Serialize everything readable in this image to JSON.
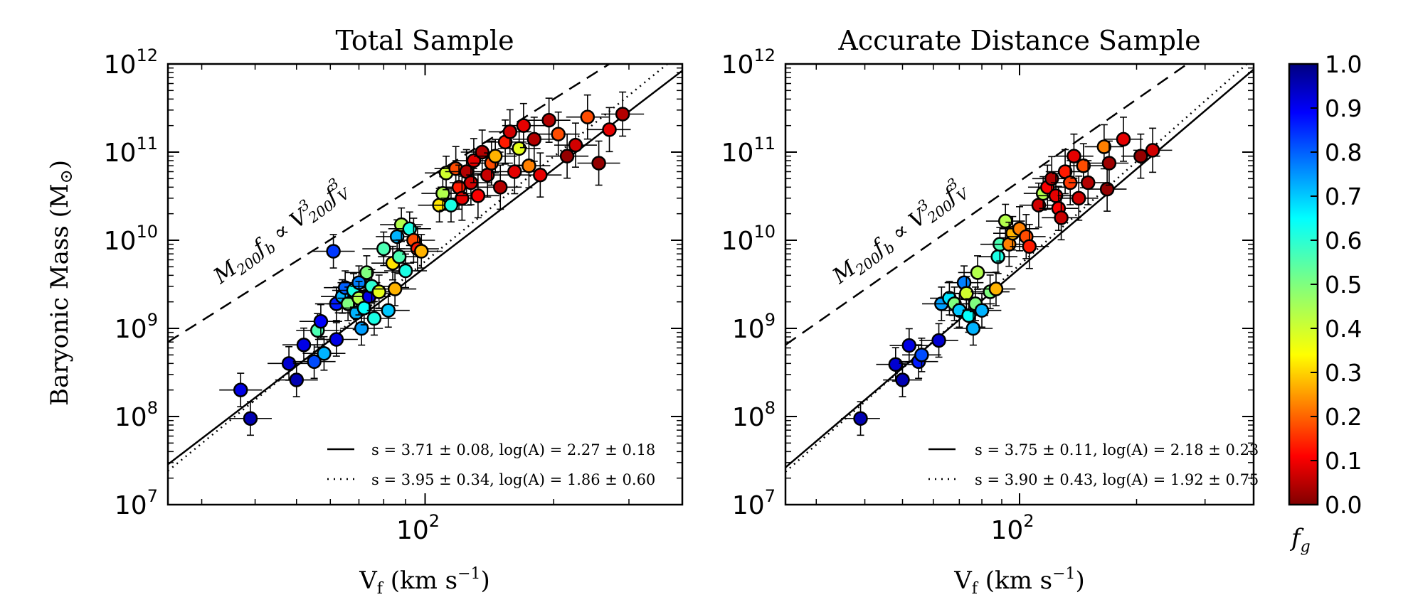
{
  "chart_data": [
    {
      "type": "scatter",
      "title": "Total Sample",
      "xlabel": "V_f (km s^-1)",
      "ylabel": "Baryonic Mass (M_sun)",
      "xscale": "log",
      "yscale": "log",
      "xlim": [
        25,
        400
      ],
      "ylim": [
        10000000,
        1000000000000
      ],
      "x_tick_labels": [
        "10^2"
      ],
      "y_tick_labels": [
        "10^7",
        "10^8",
        "10^9",
        "10^10",
        "10^11",
        "10^12"
      ],
      "annotation": "M200 fb ∝ V200^3 fV^3",
      "legend": [
        {
          "style": "solid",
          "label": "s = 3.71 ± 0.08, log(A) = 2.27 ± 0.18"
        },
        {
          "style": "dotted",
          "label": "s = 3.95 ± 0.34, log(A) = 1.86 ± 0.60"
        }
      ],
      "fits": [
        {
          "style": "solid",
          "s": 3.71,
          "logA": 2.27
        },
        {
          "style": "dotted",
          "s": 3.95,
          "logA": 1.86
        }
      ],
      "reference_line": {
        "style": "dashed",
        "x": [
          25,
          270
        ],
        "y": [
          700000000,
          1000000000000
        ]
      },
      "points": [
        {
          "x": 37,
          "y": 200000000.0,
          "fg": 0.9
        },
        {
          "x": 39,
          "y": 95000000.0,
          "fg": 0.95
        },
        {
          "x": 48,
          "y": 400000000.0,
          "fg": 0.92
        },
        {
          "x": 50,
          "y": 260000000.0,
          "fg": 0.95
        },
        {
          "x": 52,
          "y": 650000000.0,
          "fg": 0.9
        },
        {
          "x": 55,
          "y": 420000000.0,
          "fg": 0.8
        },
        {
          "x": 56,
          "y": 950000000.0,
          "fg": 0.55
        },
        {
          "x": 57,
          "y": 1200000000.0,
          "fg": 0.88
        },
        {
          "x": 58,
          "y": 520000000.0,
          "fg": 0.7
        },
        {
          "x": 61,
          "y": 7500000000.0,
          "fg": 0.82
        },
        {
          "x": 62,
          "y": 750000000.0,
          "fg": 0.9
        },
        {
          "x": 62,
          "y": 1900000000.0,
          "fg": 0.85
        },
        {
          "x": 64,
          "y": 2300000000.0,
          "fg": 0.7
        },
        {
          "x": 65,
          "y": 2900000000.0,
          "fg": 0.78
        },
        {
          "x": 66,
          "y": 1900000000.0,
          "fg": 0.5
        },
        {
          "x": 68,
          "y": 2700000000.0,
          "fg": 0.6
        },
        {
          "x": 69,
          "y": 1500000000.0,
          "fg": 0.7
        },
        {
          "x": 70,
          "y": 3300000000.0,
          "fg": 0.75
        },
        {
          "x": 70,
          "y": 2200000000.0,
          "fg": 0.45
        },
        {
          "x": 71,
          "y": 1000000000.0,
          "fg": 0.72
        },
        {
          "x": 72,
          "y": 1700000000.0,
          "fg": 0.62
        },
        {
          "x": 73,
          "y": 4300000000.0,
          "fg": 0.5
        },
        {
          "x": 74,
          "y": 2300000000.0,
          "fg": 0.9
        },
        {
          "x": 75,
          "y": 3000000000.0,
          "fg": 0.58
        },
        {
          "x": 76,
          "y": 1300000000.0,
          "fg": 0.6
        },
        {
          "x": 78,
          "y": 2600000000.0,
          "fg": 0.4
        },
        {
          "x": 80,
          "y": 8000000000.0,
          "fg": 0.55
        },
        {
          "x": 82,
          "y": 1600000000.0,
          "fg": 0.68
        },
        {
          "x": 84,
          "y": 5500000000.0,
          "fg": 0.35
        },
        {
          "x": 85,
          "y": 2800000000.0,
          "fg": 0.3
        },
        {
          "x": 86,
          "y": 11000000000.0,
          "fg": 0.7
        },
        {
          "x": 87,
          "y": 6500000000.0,
          "fg": 0.55
        },
        {
          "x": 88,
          "y": 15000000000.0,
          "fg": 0.45
        },
        {
          "x": 90,
          "y": 4500000000.0,
          "fg": 0.6
        },
        {
          "x": 92,
          "y": 13500000000.0,
          "fg": 0.6
        },
        {
          "x": 94,
          "y": 10000000000.0,
          "fg": 0.2
        },
        {
          "x": 96,
          "y": 8000000000.0,
          "fg": 0.15
        },
        {
          "x": 98,
          "y": 7500000000.0,
          "fg": 0.3
        },
        {
          "x": 108,
          "y": 25000000000.0,
          "fg": 0.35
        },
        {
          "x": 110,
          "y": 34000000000.0,
          "fg": 0.45
        },
        {
          "x": 112,
          "y": 58000000000.0,
          "fg": 0.42
        },
        {
          "x": 115,
          "y": 25000000000.0,
          "fg": 0.6
        },
        {
          "x": 118,
          "y": 65000000000.0,
          "fg": 0.2
        },
        {
          "x": 120,
          "y": 40000000000.0,
          "fg": 0.15
        },
        {
          "x": 122,
          "y": 30000000000.0,
          "fg": 0.1
        },
        {
          "x": 125,
          "y": 60000000000.0,
          "fg": 0.05
        },
        {
          "x": 128,
          "y": 45000000000.0,
          "fg": 0.08
        },
        {
          "x": 130,
          "y": 80000000000.0,
          "fg": 0.1
        },
        {
          "x": 133,
          "y": 32000000000.0,
          "fg": 0.12
        },
        {
          "x": 136,
          "y": 100000000000.0,
          "fg": 0.05
        },
        {
          "x": 140,
          "y": 55000000000.0,
          "fg": 0.07
        },
        {
          "x": 143,
          "y": 75000000000.0,
          "fg": 0.2
        },
        {
          "x": 146,
          "y": 90000000000.0,
          "fg": 0.3
        },
        {
          "x": 150,
          "y": 40000000000.0,
          "fg": 0.05
        },
        {
          "x": 154,
          "y": 130000000000.0,
          "fg": 0.15
        },
        {
          "x": 158,
          "y": 170000000000.0,
          "fg": 0.08
        },
        {
          "x": 162,
          "y": 60000000000.0,
          "fg": 0.1
        },
        {
          "x": 166,
          "y": 110000000000.0,
          "fg": 0.4
        },
        {
          "x": 170,
          "y": 200000000000.0,
          "fg": 0.1
        },
        {
          "x": 175,
          "y": 70000000000.0,
          "fg": 0.25
        },
        {
          "x": 180,
          "y": 140000000000.0,
          "fg": 0.05
        },
        {
          "x": 186,
          "y": 55000000000.0,
          "fg": 0.1
        },
        {
          "x": 195,
          "y": 230000000000.0,
          "fg": 0.05
        },
        {
          "x": 205,
          "y": 160000000000.0,
          "fg": 0.2
        },
        {
          "x": 215,
          "y": 90000000000.0,
          "fg": 0.02
        },
        {
          "x": 225,
          "y": 120000000000.0,
          "fg": 0.08
        },
        {
          "x": 240,
          "y": 250000000000.0,
          "fg": 0.2
        },
        {
          "x": 255,
          "y": 75000000000.0,
          "fg": 0.02
        },
        {
          "x": 270,
          "y": 180000000000.0,
          "fg": 0.1
        },
        {
          "x": 290,
          "y": 270000000000.0,
          "fg": 0.05
        }
      ]
    },
    {
      "type": "scatter",
      "title": "Accurate Distance Sample",
      "xlabel": "V_f (km s^-1)",
      "ylabel": "",
      "xscale": "log",
      "yscale": "log",
      "xlim": [
        25,
        400
      ],
      "ylim": [
        10000000,
        1000000000000
      ],
      "x_tick_labels": [
        "10^2"
      ],
      "y_tick_labels": [
        "10^7",
        "10^8",
        "10^9",
        "10^10",
        "10^11",
        "10^12"
      ],
      "annotation": "M200 fb ∝ V200^3 fV^3",
      "legend": [
        {
          "style": "solid",
          "label": "s = 3.75 ± 0.11, log(A) = 2.18 ± 0.23"
        },
        {
          "style": "dotted",
          "label": "s = 3.90 ± 0.43, log(A) = 1.92 ± 0.75"
        }
      ],
      "fits": [
        {
          "style": "solid",
          "s": 3.75,
          "logA": 2.18
        },
        {
          "style": "dotted",
          "s": 3.9,
          "logA": 1.92
        }
      ],
      "reference_line": {
        "style": "dashed",
        "x": [
          25,
          270
        ],
        "y": [
          650000000,
          1000000000000
        ]
      },
      "points": [
        {
          "x": 39,
          "y": 95000000.0,
          "fg": 0.95
        },
        {
          "x": 48,
          "y": 390000000.0,
          "fg": 0.92
        },
        {
          "x": 50,
          "y": 260000000.0,
          "fg": 0.95
        },
        {
          "x": 52,
          "y": 640000000.0,
          "fg": 0.9
        },
        {
          "x": 55,
          "y": 420000000.0,
          "fg": 0.85
        },
        {
          "x": 56,
          "y": 500000000.0,
          "fg": 0.8
        },
        {
          "x": 62,
          "y": 730000000.0,
          "fg": 0.92
        },
        {
          "x": 63,
          "y": 1900000000.0,
          "fg": 0.72
        },
        {
          "x": 66,
          "y": 2200000000.0,
          "fg": 0.65
        },
        {
          "x": 68,
          "y": 1900000000.0,
          "fg": 0.5
        },
        {
          "x": 70,
          "y": 1600000000.0,
          "fg": 0.68
        },
        {
          "x": 72,
          "y": 3300000000.0,
          "fg": 0.75
        },
        {
          "x": 73,
          "y": 2500000000.0,
          "fg": 0.42
        },
        {
          "x": 74,
          "y": 1400000000.0,
          "fg": 0.62
        },
        {
          "x": 76,
          "y": 1000000000.0,
          "fg": 0.7
        },
        {
          "x": 77,
          "y": 1900000000.0,
          "fg": 0.5
        },
        {
          "x": 78,
          "y": 4300000000.0,
          "fg": 0.45
        },
        {
          "x": 80,
          "y": 1600000000.0,
          "fg": 0.7
        },
        {
          "x": 84,
          "y": 2600000000.0,
          "fg": 0.5
        },
        {
          "x": 87,
          "y": 2800000000.0,
          "fg": 0.3
        },
        {
          "x": 88,
          "y": 6500000000.0,
          "fg": 0.6
        },
        {
          "x": 89,
          "y": 9000000000.0,
          "fg": 0.55
        },
        {
          "x": 92,
          "y": 16500000000.0,
          "fg": 0.45
        },
        {
          "x": 94,
          "y": 9000000000.0,
          "fg": 0.25
        },
        {
          "x": 96,
          "y": 12000000000.0,
          "fg": 0.3
        },
        {
          "x": 100,
          "y": 13500000000.0,
          "fg": 0.25
        },
        {
          "x": 104,
          "y": 11000000000.0,
          "fg": 0.2
        },
        {
          "x": 106,
          "y": 8500000000.0,
          "fg": 0.15
        },
        {
          "x": 112,
          "y": 25000000000.0,
          "fg": 0.08
        },
        {
          "x": 115,
          "y": 34000000000.0,
          "fg": 0.45
        },
        {
          "x": 118,
          "y": 40000000000.0,
          "fg": 0.12
        },
        {
          "x": 121,
          "y": 50000000000.0,
          "fg": 0.05
        },
        {
          "x": 124,
          "y": 32000000000.0,
          "fg": 0.1
        },
        {
          "x": 126,
          "y": 23000000000.0,
          "fg": 0.12
        },
        {
          "x": 128,
          "y": 18000000000.0,
          "fg": 0.07
        },
        {
          "x": 131,
          "y": 60000000000.0,
          "fg": 0.15
        },
        {
          "x": 135,
          "y": 45000000000.0,
          "fg": 0.18
        },
        {
          "x": 138,
          "y": 90000000000.0,
          "fg": 0.1
        },
        {
          "x": 142,
          "y": 30000000000.0,
          "fg": 0.08
        },
        {
          "x": 146,
          "y": 70000000000.0,
          "fg": 0.2
        },
        {
          "x": 150,
          "y": 45000000000.0,
          "fg": 0.05
        },
        {
          "x": 165,
          "y": 115000000000.0,
          "fg": 0.25
        },
        {
          "x": 168,
          "y": 38000000000.0,
          "fg": 0.02
        },
        {
          "x": 170,
          "y": 75000000000.0,
          "fg": 0.03
        },
        {
          "x": 185,
          "y": 140000000000.0,
          "fg": 0.1
        },
        {
          "x": 205,
          "y": 90000000000.0,
          "fg": 0.02
        },
        {
          "x": 220,
          "y": 105000000000.0,
          "fg": 0.08
        }
      ]
    }
  ],
  "colorbar": {
    "label": "f_g",
    "ticks": [
      "0.0",
      "0.1",
      "0.2",
      "0.3",
      "0.4",
      "0.5",
      "0.6",
      "0.7",
      "0.8",
      "0.9",
      "1.0"
    ],
    "colormap": "jet_r",
    "range": [
      0,
      1
    ]
  }
}
